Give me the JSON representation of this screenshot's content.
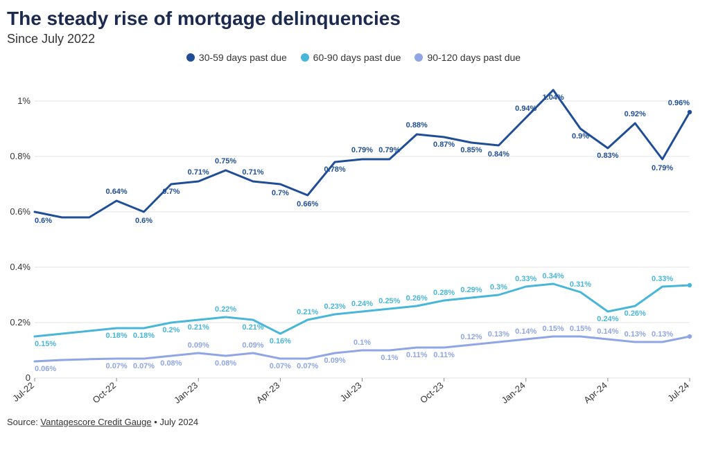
{
  "title": "The steady rise of mortgage delinquencies",
  "subtitle": "Since July 2022",
  "source_prefix": "Source: ",
  "source_link": "Vantagescore Credit Gauge",
  "source_suffix": " • July 2024",
  "chart": {
    "type": "line",
    "background_color": "#ffffff",
    "grid_color": "#e3e3e3",
    "axis_font_size": 13,
    "label_font_size": 11,
    "title_color": "#1b2a4e",
    "yaxis": {
      "min": 0,
      "max": 1.1,
      "ticks": [
        0,
        0.2,
        0.4,
        0.6,
        0.8,
        1.0
      ],
      "format_pct": true
    },
    "xaxis": {
      "n": 25,
      "tick_indices": [
        0,
        3,
        6,
        9,
        12,
        15,
        18,
        21,
        24
      ],
      "tick_labels": [
        "Jul-22",
        "Oct-22",
        "Jan-23",
        "Apr-23",
        "Jul-23",
        "Oct-23",
        "Jan-24",
        "Apr-24",
        "Jul-24"
      ]
    },
    "series": [
      {
        "name": "30-59 days past due",
        "color": "#1f4e96",
        "line_width": 3,
        "values": [
          0.6,
          0.58,
          0.58,
          0.64,
          0.6,
          0.7,
          0.71,
          0.75,
          0.71,
          0.7,
          0.66,
          0.78,
          0.79,
          0.79,
          0.88,
          0.87,
          0.85,
          0.84,
          0.94,
          1.04,
          0.9,
          0.83,
          0.92,
          0.79,
          0.96
        ],
        "value_labels": [
          "0.6%",
          null,
          null,
          "0.64%",
          "0.6%",
          "0.7%",
          "0.71%",
          "0.75%",
          "0.71%",
          "0.7%",
          "0.66%",
          "0.78%",
          "0.79%",
          "0.79%",
          "0.88%",
          "0.87%",
          "0.85%",
          "0.84%",
          "0.94%",
          "1.04%",
          "0.9%",
          "0.83%",
          "0.92%",
          "0.79%",
          "0.96%"
        ],
        "label_offset_y": [
          16,
          0,
          0,
          -10,
          16,
          14,
          -10,
          -10,
          -10,
          16,
          16,
          14,
          -10,
          -10,
          -10,
          14,
          14,
          16,
          -10,
          14,
          14,
          14,
          -10,
          16,
          -10
        ]
      },
      {
        "name": "60-90 days past due",
        "color": "#48b6d9",
        "line_width": 3,
        "values": [
          0.15,
          0.16,
          0.17,
          0.18,
          0.18,
          0.2,
          0.21,
          0.22,
          0.21,
          0.16,
          0.21,
          0.23,
          0.24,
          0.25,
          0.26,
          0.28,
          0.29,
          0.3,
          0.33,
          0.34,
          0.31,
          0.24,
          0.26,
          0.33,
          0.335
        ],
        "value_labels": [
          "0.15%",
          null,
          null,
          "0.18%",
          "0.18%",
          "0.2%",
          "0.21%",
          "0.22%",
          "0.21%",
          "0.16%",
          "0.21%",
          "0.23%",
          "0.24%",
          "0.25%",
          "0.26%",
          "0.28%",
          "0.29%",
          "0.3%",
          "0.33%",
          "0.34%",
          "0.31%",
          "0.24%",
          "0.26%",
          "0.33%",
          null
        ],
        "label_offset_y": [
          14,
          0,
          0,
          14,
          14,
          14,
          14,
          -8,
          14,
          14,
          -8,
          -8,
          -8,
          -8,
          -8,
          -8,
          -8,
          -8,
          -8,
          -8,
          -8,
          14,
          14,
          -8,
          0
        ]
      },
      {
        "name": "90-120 days past due",
        "color": "#8fa5e6",
        "line_width": 3,
        "values": [
          0.06,
          0.065,
          0.068,
          0.07,
          0.07,
          0.08,
          0.09,
          0.08,
          0.09,
          0.07,
          0.07,
          0.09,
          0.1,
          0.1,
          0.11,
          0.11,
          0.12,
          0.13,
          0.14,
          0.15,
          0.15,
          0.14,
          0.13,
          0.13,
          0.15
        ],
        "value_labels": [
          "0.06%",
          null,
          null,
          "0.07%",
          "0.07%",
          "0.08%",
          "0.09%",
          "0.08%",
          "0.09%",
          "0.07%",
          "0.07%",
          "0.09%",
          "0.1%",
          "0.1%",
          "0.11%",
          "0.11%",
          "0.12%",
          "0.13%",
          "0.14%",
          "0.15%",
          "0.15%",
          "0.14%",
          "0.13%",
          "0.13%",
          null
        ],
        "label_offset_y": [
          14,
          0,
          0,
          14,
          14,
          14,
          -8,
          14,
          -8,
          14,
          14,
          14,
          -8,
          14,
          14,
          14,
          -8,
          -8,
          -8,
          -8,
          -8,
          -8,
          -8,
          -8,
          0
        ]
      }
    ]
  }
}
